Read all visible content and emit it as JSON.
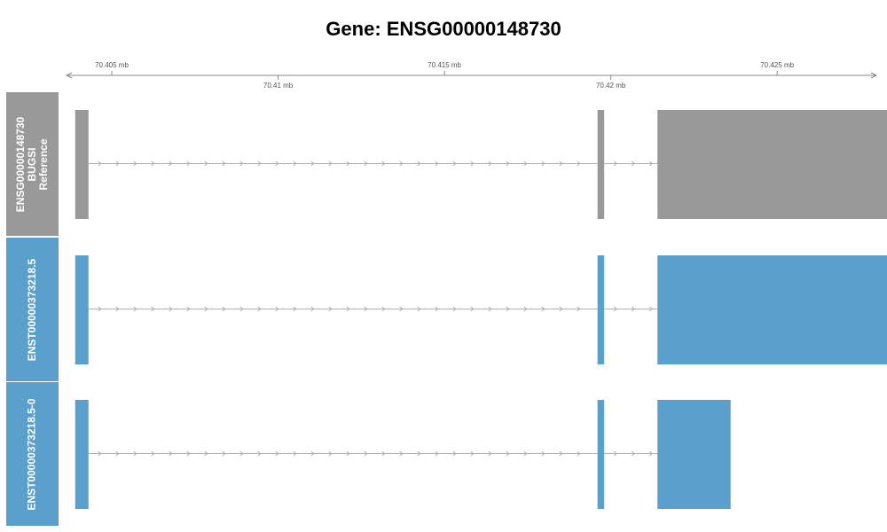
{
  "title": "Gene: ENSG00000148730",
  "axis": {
    "unit": "mb",
    "range_mb": [
      70.4034,
      70.4283
    ],
    "ticks_top": [
      {
        "value": 70.405,
        "label": "70.405 mb"
      },
      {
        "value": 70.415,
        "label": "70.415 mb"
      },
      {
        "value": 70.425,
        "label": "70.425 mb"
      }
    ],
    "ticks_bottom": [
      {
        "value": 70.41,
        "label": "70.41 mb"
      },
      {
        "value": 70.42,
        "label": "70.42 mb"
      }
    ]
  },
  "strand": "+",
  "colors": {
    "reference": "#999999",
    "transcript": "#5b9fcd",
    "intron": "#b0b0b0",
    "axis": "#888888",
    "panel_border": "#dddddd"
  },
  "tracks": [
    {
      "label_lines": [
        "ENSG00000148730",
        "BUGSI",
        "Reference"
      ],
      "kind": "reference",
      "exons": [
        [
          70.4039,
          70.4043
        ],
        [
          70.4196,
          70.4198
        ],
        [
          70.4214,
          70.4283
        ]
      ]
    },
    {
      "label_lines": [
        "ENST00000373218.5"
      ],
      "kind": "transcript",
      "exons": [
        [
          70.4039,
          70.4043
        ],
        [
          70.4196,
          70.4198
        ],
        [
          70.4214,
          70.4283
        ]
      ]
    },
    {
      "label_lines": [
        "ENST00000373218.5-0"
      ],
      "kind": "transcript",
      "exons": [
        [
          70.4039,
          70.4043
        ],
        [
          70.4196,
          70.4198
        ],
        [
          70.4214,
          70.4236
        ]
      ]
    }
  ]
}
